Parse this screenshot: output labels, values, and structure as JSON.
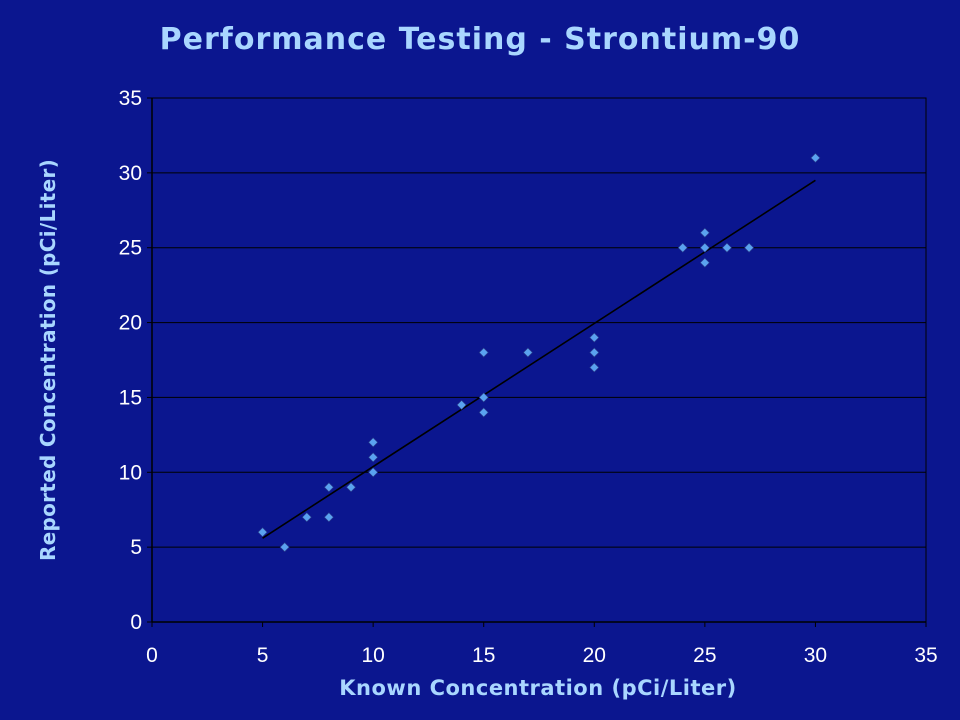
{
  "chart_data": {
    "type": "scatter",
    "title": "Performance Testing - Strontium-90",
    "xlabel": "Known Concentration (pCi/Liter)",
    "ylabel": "Reported Concentration (pCi/Liter)",
    "xlim": [
      0,
      35
    ],
    "ylim": [
      0,
      35
    ],
    "xticks": [
      0,
      5,
      10,
      15,
      20,
      25,
      30,
      35
    ],
    "yticks": [
      0,
      5,
      10,
      15,
      20,
      25,
      30,
      35
    ],
    "grid": "horizontal",
    "legend": "none",
    "series": [
      {
        "points": [
          [
            5,
            6
          ],
          [
            6,
            5
          ],
          [
            7,
            7
          ],
          [
            8,
            9
          ],
          [
            8,
            7
          ],
          [
            9,
            9
          ],
          [
            10,
            12
          ],
          [
            10,
            11
          ],
          [
            10,
            10
          ],
          [
            14,
            14.5
          ],
          [
            15,
            18
          ],
          [
            15,
            15
          ],
          [
            15,
            14
          ],
          [
            17,
            18
          ],
          [
            20,
            19
          ],
          [
            20,
            18
          ],
          [
            20,
            17
          ],
          [
            24,
            25
          ],
          [
            25,
            26
          ],
          [
            25,
            25
          ],
          [
            25,
            24
          ],
          [
            26,
            25
          ],
          [
            27,
            25
          ],
          [
            30,
            31
          ]
        ]
      }
    ],
    "trendline": {
      "type": "linear",
      "x_start": 5,
      "y_start": 5.6,
      "x_end": 30,
      "y_end": 29.5
    },
    "colors": {
      "background": "#0b168f",
      "plot_area": "#0b168f",
      "gridline": "#000000",
      "marker": "#5aa2f0",
      "trendline": "#000000",
      "text": "#a9d6ff",
      "tick_text": "#ffffff"
    }
  }
}
